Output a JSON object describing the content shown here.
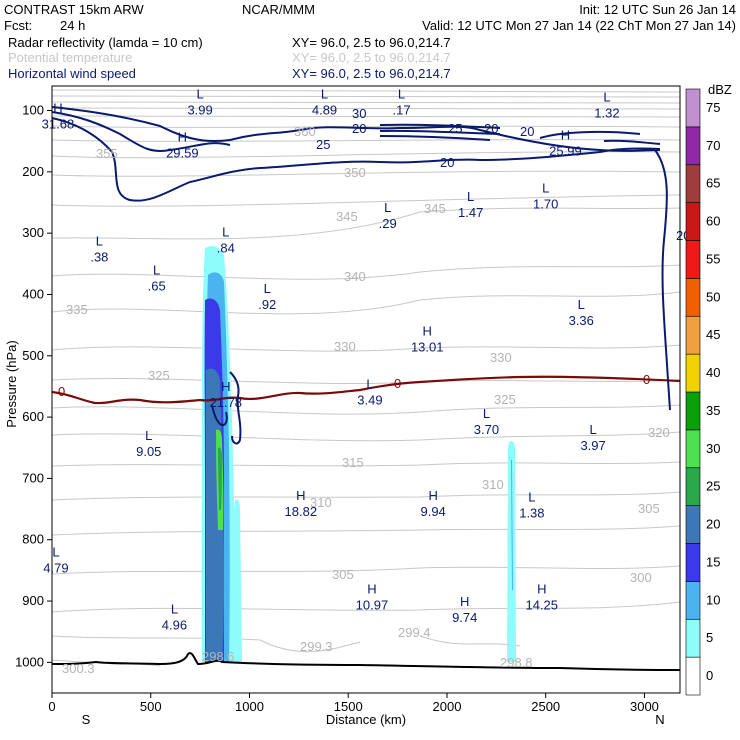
{
  "header": {
    "model": "CONTRAST 15km ARW",
    "center": "NCAR/MMM",
    "init": "Init: 12 UTC Sun 26 Jan 14",
    "fcst_label": "Fcst:",
    "fcst_value": "24 h",
    "valid": "Valid: 12 UTC Mon 27 Jan 14 (22 ChT Mon 27 Jan 14)",
    "fields": [
      {
        "name": "Radar reflectivity (lamda = 10 cm)",
        "xy": "XY=  96.0,  2.5 to  96.0,214.7",
        "color": "#000000"
      },
      {
        "name": "Potential temperature",
        "xy": "XY=  96.0,  2.5 to  96.0,214.7",
        "color": "#c8c8c8"
      },
      {
        "name": "Horizontal wind speed",
        "xy": "XY=  96.0,  2.5 to  96.0,214.7",
        "color": "#0a1a6e"
      }
    ]
  },
  "chart_data": {
    "type": "cross-section",
    "xlabel": "Distance (km)",
    "ylabel": "Pressure (hPa)",
    "xlim": [
      0,
      3180
    ],
    "ylim": [
      1050,
      60
    ],
    "x_ticks": [
      0,
      500,
      1000,
      1500,
      2000,
      2500,
      3000
    ],
    "y_ticks": [
      100,
      200,
      300,
      400,
      500,
      600,
      700,
      800,
      900,
      1000
    ],
    "x_end_labels": {
      "left": "S",
      "right": "N"
    },
    "colorbar": {
      "unit": "dBZ",
      "levels": [
        0,
        5,
        10,
        15,
        20,
        25,
        30,
        35,
        40,
        45,
        50,
        55,
        60,
        65,
        70,
        75
      ],
      "colors": [
        "#ffffff",
        "#8ffcfc",
        "#4ab4f0",
        "#3a3ae8",
        "#3c78b8",
        "#2aa84a",
        "#4ee04e",
        "#0aa00a",
        "#f0d200",
        "#f0a040",
        "#f06000",
        "#f01818",
        "#c81818",
        "#a03c3c",
        "#9028a8",
        "#c090d0"
      ]
    },
    "wind_contours": [
      "20",
      "25",
      "30",
      "25",
      "20",
      "20",
      "20",
      "20"
    ],
    "theta_labels": [
      "360",
      "355",
      "350",
      "345",
      "345",
      "340",
      "335",
      "330",
      "330",
      "325",
      "325",
      "320",
      "315",
      "310",
      "310",
      "305",
      "305",
      "300",
      "299.3",
      "299.4",
      "298.8",
      "300.3",
      "298.6"
    ],
    "isotherm_label": "0",
    "extrema": [
      {
        "type": "L",
        "value": "3.99",
        "x": 750,
        "p": 95
      },
      {
        "type": "L",
        "value": "4.89",
        "x": 1380,
        "p": 95
      },
      {
        "type": "L",
        "value": ".17",
        "x": 1770,
        "p": 95
      },
      {
        "type": "L",
        "value": "1.32",
        "x": 2810,
        "p": 100
      },
      {
        "type": "H",
        "value": "31.68",
        "x": 30,
        "p": 118
      },
      {
        "type": "H",
        "value": "29.59",
        "x": 660,
        "p": 165
      },
      {
        "type": "H",
        "value": "25.99",
        "x": 2600,
        "p": 162
      },
      {
        "type": "L",
        "value": ".29",
        "x": 1700,
        "p": 280
      },
      {
        "type": "L",
        "value": "1.47",
        "x": 2120,
        "p": 262
      },
      {
        "type": "L",
        "value": "1.70",
        "x": 2500,
        "p": 248
      },
      {
        "type": "L",
        "value": ".38",
        "x": 240,
        "p": 335
      },
      {
        "type": "L",
        "value": ".84",
        "x": 880,
        "p": 320
      },
      {
        "type": "L",
        "value": ".65",
        "x": 530,
        "p": 382
      },
      {
        "type": "L",
        "value": ".92",
        "x": 1090,
        "p": 412
      },
      {
        "type": "L",
        "value": "3.36",
        "x": 2680,
        "p": 438
      },
      {
        "type": "H",
        "value": "13.01",
        "x": 1900,
        "p": 482
      },
      {
        "type": "H",
        "value": "21.78",
        "x": 880,
        "p": 572
      },
      {
        "type": "L",
        "value": "3.49",
        "x": 1610,
        "p": 568
      },
      {
        "type": "L",
        "value": "3.70",
        "x": 2200,
        "p": 616
      },
      {
        "type": "L",
        "value": "3.97",
        "x": 2740,
        "p": 642
      },
      {
        "type": "L",
        "value": "9.05",
        "x": 490,
        "p": 652
      },
      {
        "type": "H",
        "value": "18.82",
        "x": 1260,
        "p": 750
      },
      {
        "type": "H",
        "value": "9.94",
        "x": 1930,
        "p": 750
      },
      {
        "type": "L",
        "value": "1.38",
        "x": 2430,
        "p": 752
      },
      {
        "type": "L",
        "value": "4.79",
        "x": 20,
        "p": 842
      },
      {
        "type": "H",
        "value": "10.97",
        "x": 1620,
        "p": 902
      },
      {
        "type": "H",
        "value": "14.25",
        "x": 2480,
        "p": 902
      },
      {
        "type": "H",
        "value": "9.74",
        "x": 2090,
        "p": 923
      },
      {
        "type": "L",
        "value": "4.96",
        "x": 620,
        "p": 935
      }
    ]
  }
}
